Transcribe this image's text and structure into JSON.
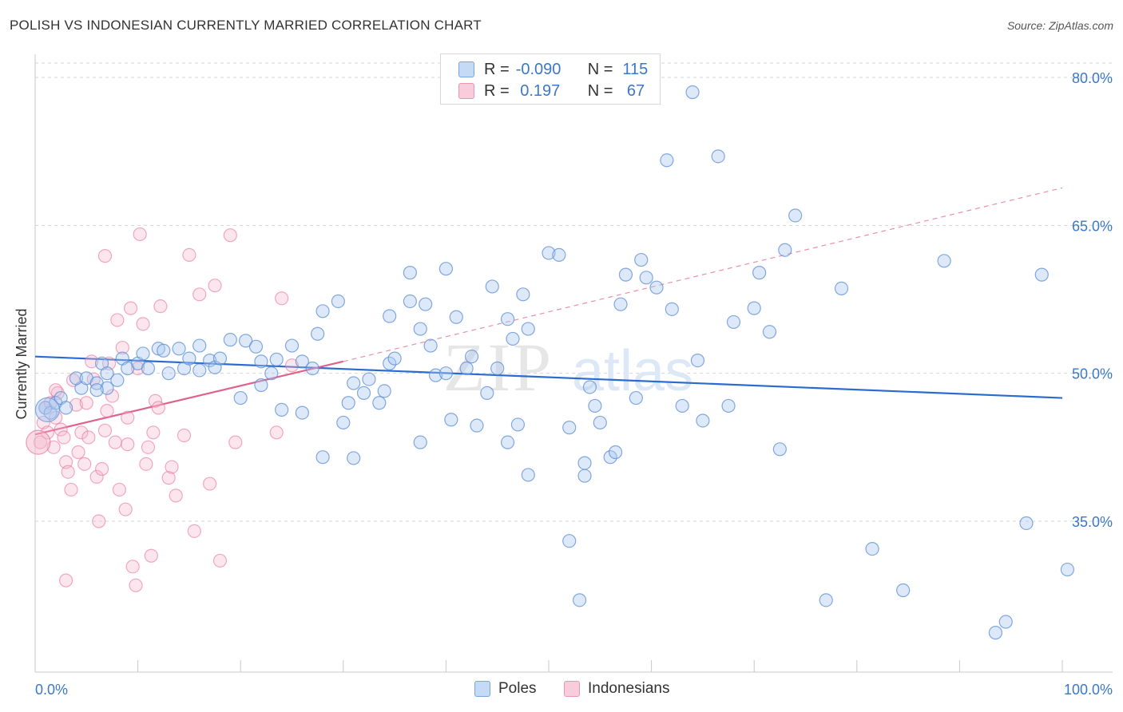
{
  "header": {
    "title": "POLISH VS INDONESIAN CURRENTLY MARRIED CORRELATION CHART",
    "source": "Source: ZipAtlas.com"
  },
  "watermark": {
    "zip": "ZIP",
    "atlas": "atlas"
  },
  "legend": {
    "rows": [
      {
        "r_label": "R =",
        "r_value": "-0.090",
        "n_label": "N =",
        "n_value": "115",
        "color": "#aac8f0"
      },
      {
        "r_label": "R =",
        "r_value": " 0.197",
        "n_label": "N =",
        "n_value": " 67",
        "color": "#f4b8cc"
      }
    ]
  },
  "bottom_legend": {
    "poles": "Poles",
    "indonesians": "Indonesians"
  },
  "colors": {
    "blue": "#5b8ed6",
    "blue_fill": "#aac8f0",
    "pink": "#e9739c",
    "pink_fill": "#f4b8cc",
    "blue_line": "#2a6bd0",
    "pink_line": "#e0628c",
    "tick_text": "#3a78c8"
  },
  "chart_data": {
    "type": "scatter",
    "title": "POLISH VS INDONESIAN CURRENTLY MARRIED CORRELATION CHART",
    "xlabel": "",
    "ylabel": "Currently Married",
    "xlim": [
      0,
      100
    ],
    "ylim": [
      20,
      84
    ],
    "x_tick_labels": [
      "0.0%",
      "100.0%"
    ],
    "y_ticks": [
      35,
      50,
      65,
      80
    ],
    "y_tick_labels": [
      "35.0%",
      "50.0%",
      "65.0%",
      "80.0%"
    ],
    "grid": true,
    "series": [
      {
        "name": "Poles",
        "r": -0.09,
        "n": 115,
        "trend": {
          "x": [
            0,
            100
          ],
          "y": [
            51.7,
            47.5
          ]
        },
        "points": [
          [
            1.0,
            46.5
          ],
          [
            1.5,
            46.0
          ],
          [
            2.0,
            47.0
          ],
          [
            2.5,
            47.5
          ],
          [
            3.0,
            46.5
          ],
          [
            4.5,
            48.5
          ],
          [
            4.0,
            49.5
          ],
          [
            5.0,
            49.5
          ],
          [
            6.0,
            49.0
          ],
          [
            6.5,
            51.0
          ],
          [
            7.0,
            48.5
          ],
          [
            6.0,
            48.3
          ],
          [
            7.0,
            50.0
          ],
          [
            8.0,
            49.3
          ],
          [
            8.5,
            51.5
          ],
          [
            9.0,
            50.5
          ],
          [
            10.0,
            51.0
          ],
          [
            11.0,
            50.5
          ],
          [
            10.5,
            52.0
          ],
          [
            12.0,
            52.5
          ],
          [
            12.5,
            52.3
          ],
          [
            14.0,
            52.5
          ],
          [
            13.0,
            50.0
          ],
          [
            14.5,
            50.5
          ],
          [
            15.0,
            51.5
          ],
          [
            16.0,
            52.8
          ],
          [
            17.0,
            51.3
          ],
          [
            17.5,
            50.6
          ],
          [
            16.0,
            50.3
          ],
          [
            18.0,
            51.5
          ],
          [
            19.0,
            53.4
          ],
          [
            20.5,
            53.3
          ],
          [
            21.5,
            52.7
          ],
          [
            22.0,
            51.2
          ],
          [
            23.0,
            50.0
          ],
          [
            23.5,
            51.4
          ],
          [
            25.0,
            52.8
          ],
          [
            24.0,
            46.3
          ],
          [
            26.0,
            51.2
          ],
          [
            27.0,
            50.5
          ],
          [
            27.5,
            54.0
          ],
          [
            28.0,
            56.3
          ],
          [
            29.5,
            57.3
          ],
          [
            30.5,
            47.0
          ],
          [
            31.0,
            49.0
          ],
          [
            32.0,
            48.0
          ],
          [
            32.5,
            49.4
          ],
          [
            33.5,
            47.0
          ],
          [
            34.0,
            48.2
          ],
          [
            34.5,
            51.0
          ],
          [
            34.5,
            55.8
          ],
          [
            35.0,
            51.5
          ],
          [
            36.5,
            60.2
          ],
          [
            36.5,
            57.3
          ],
          [
            37.5,
            54.5
          ],
          [
            38.0,
            57.0
          ],
          [
            38.5,
            52.8
          ],
          [
            39.0,
            49.8
          ],
          [
            40.0,
            60.6
          ],
          [
            40.5,
            45.3
          ],
          [
            41.0,
            55.7
          ],
          [
            42.0,
            50.5
          ],
          [
            42.5,
            51.7
          ],
          [
            43.0,
            44.7
          ],
          [
            44.0,
            48.0
          ],
          [
            44.5,
            58.8
          ],
          [
            45.0,
            50.5
          ],
          [
            46.0,
            55.5
          ],
          [
            46.5,
            53.5
          ],
          [
            47.0,
            44.8
          ],
          [
            47.5,
            58.0
          ],
          [
            48.0,
            54.5
          ],
          [
            50.0,
            62.2
          ],
          [
            51.0,
            62.0
          ],
          [
            52.0,
            44.5
          ],
          [
            53.5,
            40.9
          ],
          [
            54.0,
            48.6
          ],
          [
            54.5,
            46.7
          ],
          [
            55.0,
            45.0
          ],
          [
            56.0,
            41.5
          ],
          [
            57.0,
            57.0
          ],
          [
            57.5,
            60.0
          ],
          [
            58.5,
            47.5
          ],
          [
            59.0,
            61.5
          ],
          [
            59.5,
            59.7
          ],
          [
            60.5,
            58.7
          ],
          [
            61.5,
            71.6
          ],
          [
            62.0,
            56.5
          ],
          [
            63.0,
            46.7
          ],
          [
            64.0,
            78.5
          ],
          [
            64.5,
            51.3
          ],
          [
            65.0,
            45.2
          ],
          [
            66.5,
            72.0
          ],
          [
            67.5,
            46.7
          ],
          [
            68.0,
            55.2
          ],
          [
            70.0,
            56.6
          ],
          [
            70.5,
            60.2
          ],
          [
            71.5,
            54.2
          ],
          [
            72.5,
            42.3
          ],
          [
            73.0,
            62.5
          ],
          [
            74.0,
            66.0
          ],
          [
            77.0,
            27.0
          ],
          [
            78.5,
            58.6
          ],
          [
            81.5,
            32.2
          ],
          [
            84.5,
            28.0
          ],
          [
            88.5,
            61.4
          ],
          [
            93.5,
            23.7
          ],
          [
            94.5,
            24.8
          ],
          [
            96.5,
            34.8
          ],
          [
            98.0,
            60.0
          ],
          [
            100.5,
            30.1
          ],
          [
            37.5,
            43.0
          ],
          [
            28.0,
            41.5
          ],
          [
            31.0,
            41.4
          ],
          [
            48.0,
            39.7
          ],
          [
            53.5,
            39.6
          ],
          [
            52.0,
            33.0
          ],
          [
            53.0,
            27.0
          ],
          [
            40.0,
            50.0
          ],
          [
            56.5,
            42.0
          ],
          [
            26.0,
            46.0
          ],
          [
            22.0,
            48.8
          ],
          [
            30.0,
            45.0
          ],
          [
            46.0,
            43.0
          ],
          [
            20.0,
            47.5
          ]
        ]
      },
      {
        "name": "Indonesians",
        "r": 0.197,
        "n": 67,
        "trend": {
          "x": [
            0,
            30
          ],
          "y": [
            43.8,
            51.2
          ]
        },
        "trend_extension": {
          "x": [
            30,
            100
          ],
          "y": [
            51.2,
            68.8
          ]
        },
        "points": [
          [
            0.5,
            43.0
          ],
          [
            0.8,
            45.0
          ],
          [
            1.0,
            46.5
          ],
          [
            1.2,
            44.0
          ],
          [
            1.5,
            47.0
          ],
          [
            1.8,
            42.5
          ],
          [
            2.0,
            45.5
          ],
          [
            2.2,
            48.0
          ],
          [
            2.5,
            44.3
          ],
          [
            2.8,
            43.5
          ],
          [
            3.0,
            41.0
          ],
          [
            3.2,
            40.0
          ],
          [
            3.5,
            38.2
          ],
          [
            3.7,
            49.3
          ],
          [
            4.0,
            46.8
          ],
          [
            4.2,
            42.0
          ],
          [
            4.5,
            44.0
          ],
          [
            4.8,
            40.8
          ],
          [
            5.0,
            47.0
          ],
          [
            5.2,
            43.5
          ],
          [
            5.5,
            51.2
          ],
          [
            5.7,
            49.4
          ],
          [
            6.0,
            39.5
          ],
          [
            6.2,
            35.0
          ],
          [
            6.5,
            40.3
          ],
          [
            6.8,
            44.2
          ],
          [
            7.0,
            46.2
          ],
          [
            7.2,
            51.0
          ],
          [
            7.5,
            47.7
          ],
          [
            7.8,
            43.0
          ],
          [
            8.0,
            55.4
          ],
          [
            8.2,
            38.2
          ],
          [
            8.5,
            52.6
          ],
          [
            8.8,
            36.2
          ],
          [
            9.0,
            42.8
          ],
          [
            9.3,
            56.6
          ],
          [
            9.5,
            30.4
          ],
          [
            9.8,
            28.5
          ],
          [
            10.0,
            50.5
          ],
          [
            10.2,
            64.1
          ],
          [
            10.5,
            55.0
          ],
          [
            10.8,
            40.8
          ],
          [
            11.0,
            42.5
          ],
          [
            11.3,
            31.5
          ],
          [
            11.5,
            44.0
          ],
          [
            11.7,
            47.2
          ],
          [
            12.0,
            46.5
          ],
          [
            12.2,
            56.8
          ],
          [
            13.0,
            39.4
          ],
          [
            13.3,
            40.5
          ],
          [
            13.7,
            37.6
          ],
          [
            14.5,
            43.7
          ],
          [
            15.0,
            62.0
          ],
          [
            15.5,
            34.0
          ],
          [
            16.0,
            58.0
          ],
          [
            17.0,
            38.8
          ],
          [
            17.5,
            58.9
          ],
          [
            19.0,
            64.0
          ],
          [
            18.0,
            31.0
          ],
          [
            19.5,
            43.0
          ],
          [
            23.5,
            44.0
          ],
          [
            24.0,
            57.6
          ],
          [
            25.0,
            50.8
          ],
          [
            3.0,
            29.0
          ],
          [
            6.8,
            61.9
          ],
          [
            2.0,
            48.3
          ],
          [
            9.0,
            45.5
          ]
        ]
      }
    ],
    "big_points": [
      {
        "series": "Poles",
        "x": 1.2,
        "y": 46.3
      },
      {
        "series": "Indonesians",
        "x": 0.3,
        "y": 43.0
      }
    ]
  }
}
